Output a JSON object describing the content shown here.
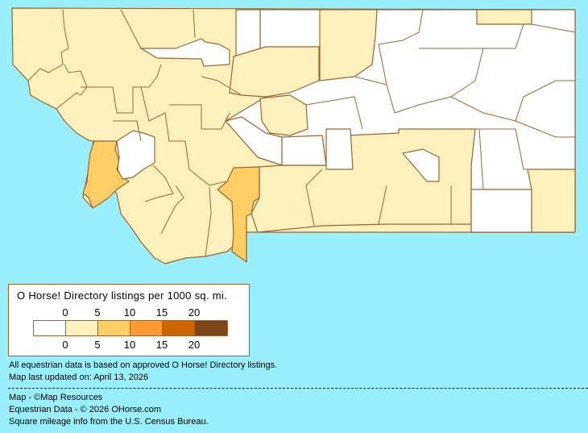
{
  "legend": {
    "title": "O Horse! Directory listings per 1000 sq. mi.",
    "ticks_top": [
      "0",
      "5",
      "10",
      "15",
      "20"
    ],
    "ticks_bottom": [
      "0",
      "5",
      "10",
      "15",
      "20"
    ],
    "bins": [
      {
        "color": "#ffffff"
      },
      {
        "color": "#fdf2bd"
      },
      {
        "color": "#fdcd66"
      },
      {
        "color": "#fd9a33"
      },
      {
        "color": "#cc6600"
      },
      {
        "color": "#7f4719"
      }
    ]
  },
  "colors": {
    "background": "#99f0fc",
    "border": "#a0622d",
    "none": "#ffffff",
    "low": "#fdf2bd",
    "mid": "#fdcd66"
  },
  "notes": {
    "data_basis": "All equestrian data is based on approved O Horse! Directory listings.",
    "updated": "Map last updated on: April 13, 2026"
  },
  "credits": {
    "map": "Map - ©Map Resources",
    "equestrian": "Equestrian Data - © 2026 OHorse.com",
    "census": "Square mileage info from the U.S. Census Bureau."
  }
}
